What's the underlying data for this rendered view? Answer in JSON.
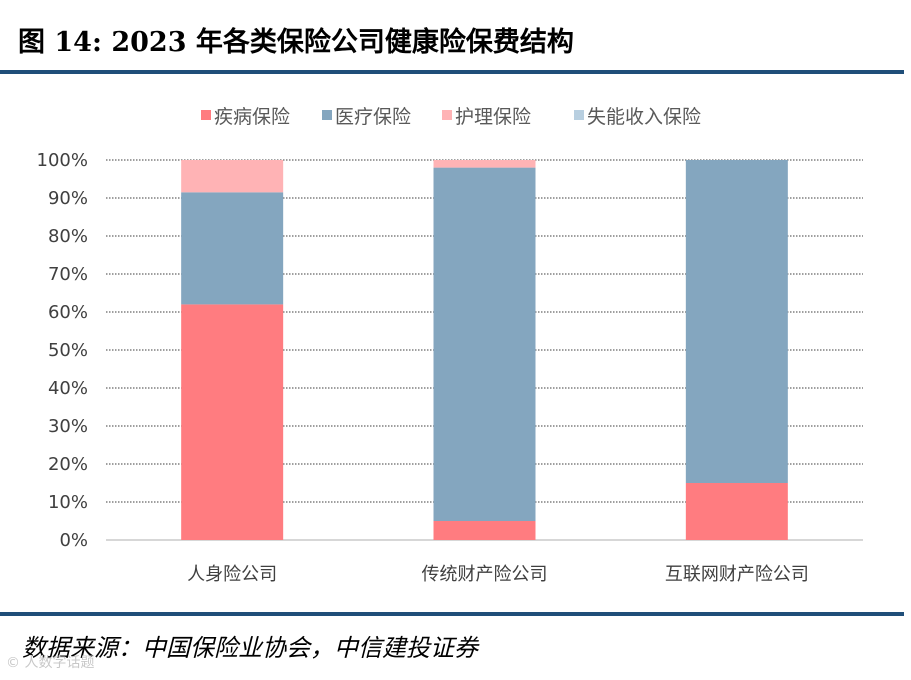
{
  "title": "图 14: 2023 年各类保险公司健康险保费结构",
  "source": "数据来源：中国保险业协会，中信建投证券",
  "watermark": "© 人数字话题",
  "colors": {
    "rule": "#1f4e79",
    "series": [
      "#ff7c80",
      "#84a6bf",
      "#ffb3b5",
      "#b8cfe0"
    ]
  },
  "chart_data": {
    "type": "bar",
    "stacked": true,
    "categories": [
      "人身险公司",
      "传统财产险公司",
      "互联网财产险公司"
    ],
    "series": [
      {
        "name": "疾病保险",
        "values": [
          62,
          5,
          15
        ]
      },
      {
        "name": "医疗保险",
        "values": [
          29.5,
          93,
          85
        ]
      },
      {
        "name": "护理保险",
        "values": [
          8.5,
          2,
          0
        ]
      },
      {
        "name": "失能收入保险",
        "values": [
          0,
          0,
          0
        ]
      }
    ],
    "ylim": [
      0,
      100
    ],
    "yticks": [
      "0%",
      "10%",
      "20%",
      "30%",
      "40%",
      "50%",
      "60%",
      "70%",
      "80%",
      "90%",
      "100%"
    ],
    "grid": true,
    "legend": "top"
  }
}
